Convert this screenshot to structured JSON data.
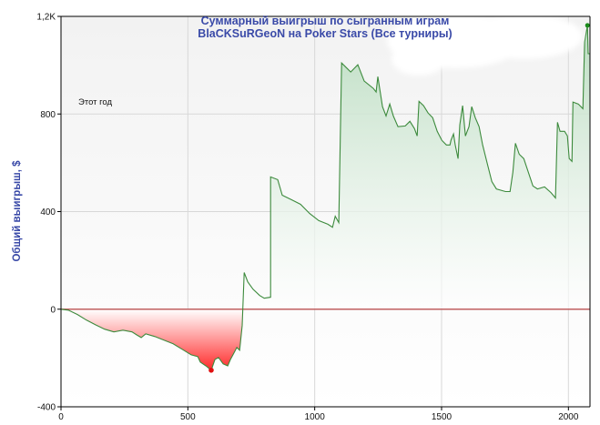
{
  "chart_data": {
    "type": "area",
    "title": [
      "Суммарный выигрыш по сыгранным играм",
      "BlaCKSuRGeoN на Poker Stars (Все турниры)"
    ],
    "xlabel": "",
    "ylabel": "Общий выигрыш, $",
    "annotation": "Этот год",
    "xlim": [
      0,
      2085
    ],
    "ylim": [
      -400,
      1200
    ],
    "x_ticks": [
      0,
      500,
      1000,
      1500,
      2000
    ],
    "x_tick_labels": [
      "0",
      "500",
      "1000",
      "1500",
      "2000"
    ],
    "y_ticks": [
      -400,
      0,
      400,
      800,
      1200
    ],
    "y_tick_labels": [
      "-400",
      "0",
      "400",
      "800",
      "1,2K"
    ],
    "grid": true,
    "zero_line": true,
    "colors": {
      "positive": "#3c8a3c",
      "negative_fill": "#ff2a2a",
      "zero_line": "#c06060",
      "max_marker": "#1a8a1a",
      "min_marker": "#e01010",
      "title": "#3a4aa8"
    },
    "max_point": [
      2075,
      1163
    ],
    "min_point": [
      592,
      -250
    ],
    "series": [
      {
        "x": [
          0,
          29,
          65,
          101,
          136,
          172,
          208,
          244,
          280,
          298,
          316,
          334,
          370,
          406,
          442,
          477,
          513,
          539,
          549,
          571,
          592,
          607,
          621,
          639,
          657,
          668,
          682,
          693,
          704,
          714,
          722,
          736,
          757,
          783,
          801,
          826,
          826,
          854,
          872,
          908,
          944,
          980,
          1016,
          1052,
          1070,
          1081,
          1095,
          1106,
          1142,
          1170,
          1195,
          1231,
          1242,
          1249,
          1267,
          1281,
          1296,
          1310,
          1328,
          1357,
          1375,
          1393,
          1404,
          1411,
          1429,
          1447,
          1465,
          1483,
          1501,
          1519,
          1533,
          1537,
          1547,
          1554,
          1565,
          1572,
          1583,
          1594,
          1601,
          1608,
          1619,
          1633,
          1648,
          1662,
          1680,
          1698,
          1716,
          1752,
          1770,
          1781,
          1791,
          1806,
          1824,
          1842,
          1860,
          1878,
          1906,
          1931,
          1949,
          1957,
          1967,
          1985,
          1996,
          2003,
          2014,
          2018,
          2039,
          2057,
          2064,
          2075,
          2078,
          2085
        ],
        "y": [
          0,
          -4,
          -22,
          -45,
          -64,
          -82,
          -93,
          -86,
          -93,
          -105,
          -116,
          -101,
          -112,
          -127,
          -142,
          -164,
          -187,
          -194,
          -217,
          -232,
          -250,
          -206,
          -198,
          -224,
          -232,
          -206,
          -179,
          -157,
          -168,
          -67,
          150,
          112,
          82,
          56,
          45,
          49,
          542,
          531,
          467,
          449,
          430,
          392,
          363,
          348,
          336,
          381,
          355,
          1009,
          972,
          1002,
          935,
          905,
          890,
          953,
          830,
          792,
          841,
          792,
          748,
          751,
          770,
          740,
          710,
          852,
          834,
          804,
          785,
          729,
          692,
          673,
          673,
          692,
          718,
          673,
          617,
          755,
          834,
          710,
          729,
          748,
          830,
          785,
          748,
          673,
          598,
          523,
          493,
          482,
          482,
          561,
          680,
          635,
          617,
          561,
          505,
          493,
          501,
          478,
          456,
          766,
          729,
          729,
          710,
          617,
          606,
          849,
          841,
          822,
          1095,
          1163,
          1047,
          1047
        ]
      }
    ]
  }
}
